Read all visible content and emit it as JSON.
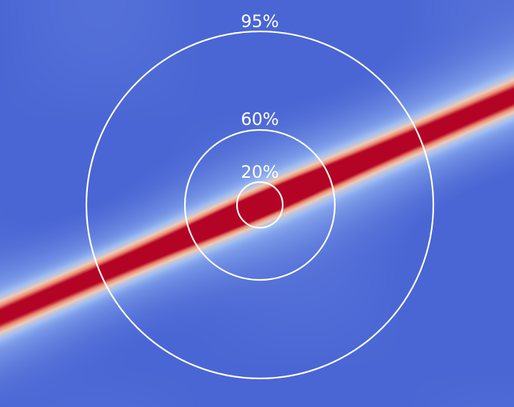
{
  "heatmap": {
    "colormap": "coolwarm",
    "colors": {
      "background_blue": "#4a66d4",
      "light_blue": "#9dbdf5",
      "pale": "#eaccbc",
      "orange": "#ee8a6c",
      "dark_red": "#b40426"
    }
  },
  "rings": [
    {
      "label": "20%"
    },
    {
      "label": "60%"
    },
    {
      "label": "95%"
    }
  ],
  "ring_color": "#ffffff"
}
